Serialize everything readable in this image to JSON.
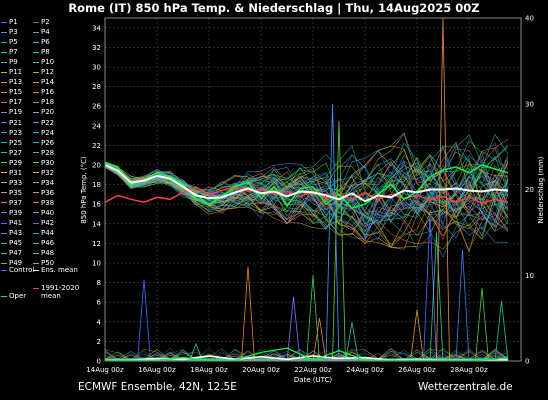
{
  "title": "Rome  (IT)  850 hPa Temp. & Niederschlag | Thu, 14Aug2025 00Z",
  "footer": {
    "left": "ECMWF Ensemble, 42N, 12.5E",
    "right": "Wetterzentrale.de"
  },
  "legend": [
    {
      "label": "P1",
      "color": "#3a6cff"
    },
    {
      "label": "P2",
      "color": "#2e86c1"
    },
    {
      "label": "P3",
      "color": "#5a8cff"
    },
    {
      "label": "P4",
      "color": "#3ea0e0"
    },
    {
      "label": "P5",
      "color": "#00b7c7"
    },
    {
      "label": "P6",
      "color": "#17c3a0"
    },
    {
      "label": "P7",
      "color": "#2ec4a8"
    },
    {
      "label": "P8",
      "color": "#38c98a"
    },
    {
      "label": "P9",
      "color": "#39d353"
    },
    {
      "label": "P10",
      "color": "#44d144"
    },
    {
      "label": "P11",
      "color": "#e0b020"
    },
    {
      "label": "P12",
      "color": "#d9a820"
    },
    {
      "label": "P13",
      "color": "#e6a030"
    },
    {
      "label": "P14",
      "color": "#d69a2a"
    },
    {
      "label": "P15",
      "color": "#e08a30"
    },
    {
      "label": "P16",
      "color": "#d88a2a"
    },
    {
      "label": "P17",
      "color": "#e07a30"
    },
    {
      "label": "P18",
      "color": "#cc8838"
    },
    {
      "label": "P19",
      "color": "#a07adc"
    },
    {
      "label": "P20",
      "color": "#b08ae0"
    },
    {
      "label": "P21",
      "color": "#5a6cff"
    },
    {
      "label": "P22",
      "color": "#6a7aff"
    },
    {
      "label": "P23",
      "color": "#3a9aff"
    },
    {
      "label": "P24",
      "color": "#2ea0e8"
    },
    {
      "label": "P25",
      "color": "#00bcd4"
    },
    {
      "label": "P26",
      "color": "#10c8c0"
    },
    {
      "label": "P27",
      "color": "#20c8a8"
    },
    {
      "label": "P28",
      "color": "#30c890"
    },
    {
      "label": "P29",
      "color": "#40d060"
    },
    {
      "label": "P30",
      "color": "#50d050"
    },
    {
      "label": "P31",
      "color": "#e0c030"
    },
    {
      "label": "P32",
      "color": "#d8b030"
    },
    {
      "label": "P33",
      "color": "#e0a838"
    },
    {
      "label": "P34",
      "color": "#d0a030"
    },
    {
      "label": "P35",
      "color": "#e09040"
    },
    {
      "label": "P36",
      "color": "#d89040"
    },
    {
      "label": "P37",
      "color": "#e07838"
    },
    {
      "label": "P38",
      "color": "#c88040"
    },
    {
      "label": "P39",
      "color": "#9070d8"
    },
    {
      "label": "P40",
      "color": "#a080e0"
    },
    {
      "label": "P41",
      "color": "#4a70ff"
    },
    {
      "label": "P42",
      "color": "#3a80e8"
    },
    {
      "label": "P43",
      "color": "#30a0ff"
    },
    {
      "label": "P44",
      "color": "#20b0e0"
    },
    {
      "label": "P45",
      "color": "#10c0c8"
    },
    {
      "label": "P46",
      "color": "#20c8b0"
    },
    {
      "label": "P47",
      "color": "#30c898"
    },
    {
      "label": "P48",
      "color": "#40c880"
    },
    {
      "label": "P49",
      "color": "#50d048"
    },
    {
      "label": "P50",
      "color": "#60d040"
    },
    {
      "label": "Control",
      "color": "#5060ff"
    },
    {
      "label": "Ens. mean",
      "color": "#ffffff"
    },
    {
      "label": "Oper",
      "color": "#00ff40"
    },
    {
      "label": "1991-2020 mean",
      "color": "#ff4040"
    }
  ],
  "colors": {
    "grid": "#555555",
    "mean": "#ffffff",
    "climate": "#ff4040",
    "oper": "#00ff40"
  },
  "chart_data": {
    "type": "line",
    "xlabel": "Date (UTC)",
    "ylabel": "850 hPa Temp. (°C)",
    "ylabel_right": "Niederschlag (mm)",
    "ylim": [
      0,
      35
    ],
    "ylim_right": [
      0,
      40
    ],
    "yticks": [
      0,
      2,
      4,
      6,
      8,
      10,
      12,
      14,
      16,
      18,
      20,
      22,
      24,
      26,
      28,
      30,
      32,
      34
    ],
    "yticks_right": [
      0,
      10,
      20,
      30,
      40
    ],
    "xlim": [
      "2025-08-14 00:00",
      "2025-08-29 12:00"
    ],
    "xticks": [
      "14Aug 00z",
      "16Aug 00z",
      "18Aug 00z",
      "20Aug 00z",
      "22Aug 00z",
      "24Aug 00z",
      "26Aug 00z",
      "28Aug 00z"
    ],
    "xticks_dates": [
      "2025-08-14",
      "2025-08-16",
      "2025-08-18",
      "2025-08-20",
      "2025-08-22",
      "2025-08-24",
      "2025-08-26",
      "2025-08-28"
    ],
    "grid": true,
    "legend_position": "left",
    "temp_x_hours": [
      0,
      12,
      24,
      36,
      48,
      60,
      72,
      84,
      96,
      108,
      120,
      132,
      144,
      156,
      168,
      180,
      192,
      204,
      216,
      228,
      240,
      252,
      264,
      276,
      288,
      300,
      312,
      324,
      336,
      348,
      360,
      372
    ],
    "ens_mean": [
      20.0,
      19.4,
      18.2,
      18.4,
      18.9,
      18.6,
      17.8,
      16.9,
      16.6,
      16.7,
      17.2,
      17.6,
      17.1,
      17.3,
      16.8,
      17.3,
      17.2,
      16.9,
      16.5,
      17.1,
      16.3,
      16.9,
      16.7,
      17.4,
      17.2,
      17.5,
      17.5,
      17.6,
      17.4,
      17.3,
      17.5,
      17.4
    ],
    "climate_mean": [
      16.2,
      16.9,
      16.5,
      16.2,
      16.7,
      16.5,
      17.2,
      17.7,
      17.0,
      17.4,
      17.8,
      17.3,
      17.5,
      17.0,
      17.3,
      16.8,
      17.3,
      16.6,
      17.0,
      16.5,
      17.2,
      16.5,
      17.0,
      16.6,
      16.9,
      16.4,
      16.8,
      16.2,
      16.7,
      16.1,
      16.5,
      16.2
    ],
    "oper": [
      20.3,
      19.8,
      18.0,
      18.5,
      19.2,
      18.8,
      18.0,
      16.6,
      16.0,
      16.8,
      17.8,
      18.2,
      16.6,
      17.8,
      15.8,
      17.6,
      17.8,
      16.0,
      17.0,
      15.6,
      16.0,
      17.0,
      18.0,
      16.5,
      17.3,
      18.8,
      19.5,
      19.8,
      19.2,
      20.0,
      19.6,
      19.2
    ],
    "ens_spread": {
      "upper": [
        20.6,
        20.2,
        19.2,
        19.3,
        19.8,
        19.6,
        18.8,
        18.2,
        18.6,
        19.0,
        19.6,
        20.2,
        20.5,
        21.0,
        21.4,
        21.0,
        21.8,
        22.5,
        22.8,
        23.0,
        23.6,
        24.0,
        24.2,
        24.0,
        24.4,
        24.6,
        24.8,
        24.4,
        24.8,
        24.6,
        25.0,
        24.8
      ],
      "lower": [
        19.4,
        18.8,
        17.4,
        17.4,
        17.9,
        17.4,
        16.6,
        15.6,
        15.0,
        15.0,
        15.2,
        15.4,
        14.6,
        14.4,
        14.0,
        14.0,
        13.6,
        13.2,
        12.8,
        12.6,
        12.0,
        12.0,
        11.6,
        11.4,
        11.2,
        11.0,
        10.6,
        10.8,
        10.4,
        10.2,
        10.0,
        10.2
      ]
    },
    "precip_mean_x_hours": [
      0,
      24,
      48,
      72,
      96,
      120,
      144,
      168,
      192,
      216,
      240,
      264,
      288,
      312,
      336,
      360,
      372
    ],
    "precip_mean": [
      0.1,
      0.1,
      0.3,
      0.2,
      0.6,
      0.2,
      0.5,
      0.2,
      0.6,
      0.3,
      0.4,
      0.1,
      0.2,
      0.1,
      0.1,
      0.1,
      0.1
    ],
    "precip_oper": [
      0.1,
      0.1,
      0.1,
      0.4,
      0.1,
      0.1,
      1.0,
      1.5,
      0.1,
      1.2,
      0.1,
      0.1,
      0.1,
      0.1,
      0.1,
      0.2,
      0.4
    ],
    "precip_spikes_mm": [
      {
        "hour": 36,
        "mm": 9.5
      },
      {
        "hour": 84,
        "mm": 2.0
      },
      {
        "hour": 132,
        "mm": 11.0
      },
      {
        "hour": 174,
        "mm": 7.5
      },
      {
        "hour": 192,
        "mm": 10.0
      },
      {
        "hour": 198,
        "mm": 5.0
      },
      {
        "hour": 210,
        "mm": 30.0
      },
      {
        "hour": 216,
        "mm": 28.0
      },
      {
        "hour": 228,
        "mm": 4.5
      },
      {
        "hour": 288,
        "mm": 6.0
      },
      {
        "hour": 300,
        "mm": 17.0
      },
      {
        "hour": 306,
        "mm": 15.0
      },
      {
        "hour": 312,
        "mm": 40.0
      },
      {
        "hour": 330,
        "mm": 13.0
      },
      {
        "hour": 348,
        "mm": 8.5
      },
      {
        "hour": 366,
        "mm": 7.0
      }
    ]
  }
}
